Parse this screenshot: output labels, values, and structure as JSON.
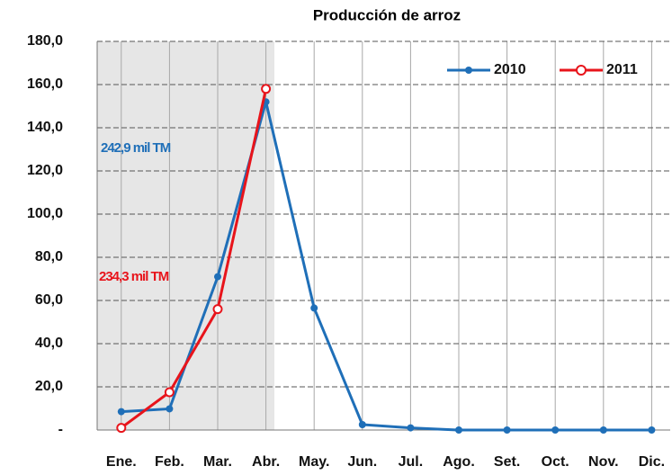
{
  "chart_data": {
    "type": "line",
    "title": "Producción de arroz",
    "categories": [
      "Ene.",
      "Feb.",
      "Mar.",
      "Abr.",
      "May.",
      "Jun.",
      "Jul.",
      "Ago.",
      "Set.",
      "Oct.",
      "Nov.",
      "Dic."
    ],
    "series": [
      {
        "name": "2010",
        "color": "#1f6fb8",
        "values": [
          8.5,
          9.8,
          71,
          152,
          56.5,
          2.5,
          1,
          0,
          0,
          0,
          0,
          0
        ]
      },
      {
        "name": "2011",
        "color": "#e8141b",
        "values": [
          1,
          17.5,
          56,
          158,
          null,
          null,
          null,
          null,
          null,
          null,
          null,
          null
        ]
      }
    ],
    "ylim": [
      0,
      180
    ],
    "yticks": [
      {
        "value": 0,
        "label": "-"
      },
      {
        "value": 20,
        "label": "20,0"
      },
      {
        "value": 40,
        "label": "40,0"
      },
      {
        "value": 60,
        "label": "60,0"
      },
      {
        "value": 80,
        "label": "80,0"
      },
      {
        "value": 100,
        "label": "100,0"
      },
      {
        "value": 120,
        "label": "120,0"
      },
      {
        "value": 140,
        "label": "140,0"
      },
      {
        "value": 160,
        "label": "160,0"
      },
      {
        "value": 180,
        "label": "180,0"
      }
    ],
    "annotations": [
      "242,9 mil TM",
      "234,3 mil TM"
    ],
    "grid": true,
    "legend": "top-right"
  }
}
